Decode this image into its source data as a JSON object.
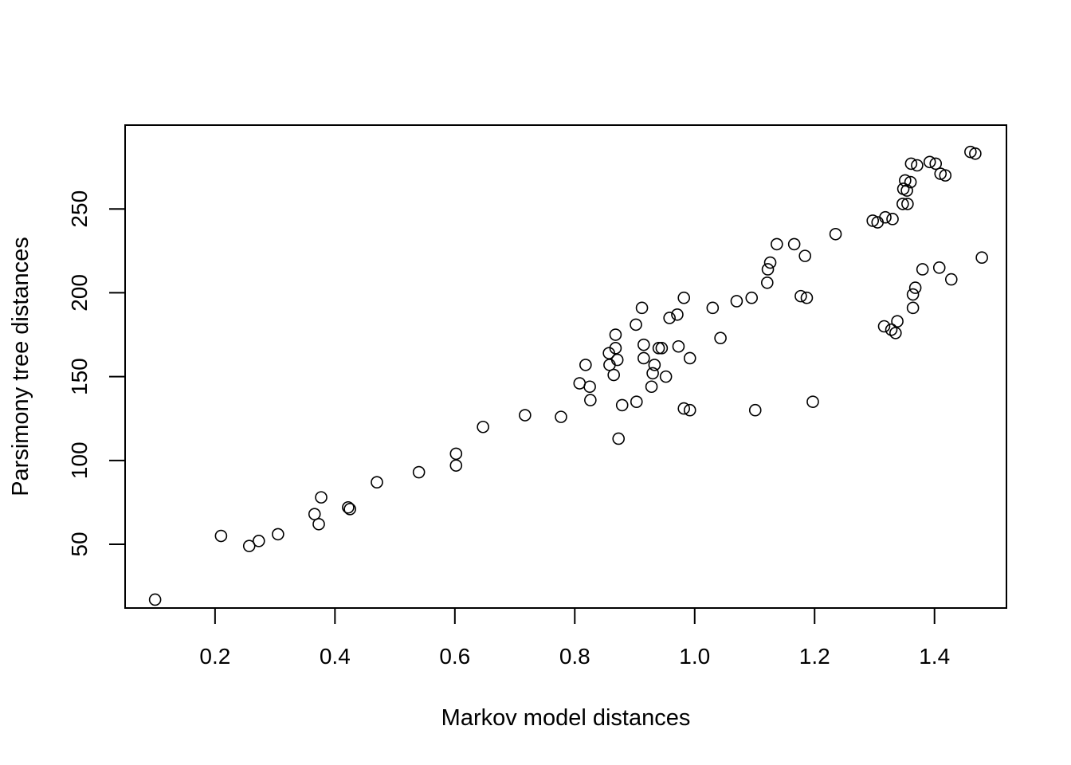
{
  "chart_data": {
    "type": "scatter",
    "title": "",
    "xlabel": "Markov model distances",
    "ylabel": "Parsimony tree distances",
    "xlim": [
      0.05,
      1.52
    ],
    "ylim": [
      12,
      300
    ],
    "xticks": [
      0.2,
      0.4,
      0.6,
      0.8,
      1.0,
      1.2,
      1.4
    ],
    "xtick_labels": [
      "0.2",
      "0.4",
      "0.6",
      "0.8",
      "1.0",
      "1.2",
      "1.4"
    ],
    "yticks": [
      50,
      100,
      150,
      200,
      250
    ],
    "ytick_labels": [
      "50",
      "100",
      "150",
      "200",
      "250"
    ],
    "grid": false,
    "legend": "none",
    "marker": "open-circle",
    "color": "#000000",
    "points": [
      [
        0.1,
        17
      ],
      [
        0.21,
        55
      ],
      [
        0.257,
        49
      ],
      [
        0.273,
        52
      ],
      [
        0.305,
        56
      ],
      [
        0.366,
        68
      ],
      [
        0.373,
        62
      ],
      [
        0.377,
        78
      ],
      [
        0.422,
        72
      ],
      [
        0.425,
        71
      ],
      [
        0.47,
        87
      ],
      [
        0.54,
        93
      ],
      [
        0.602,
        97
      ],
      [
        0.602,
        104
      ],
      [
        0.647,
        120
      ],
      [
        0.717,
        127
      ],
      [
        0.777,
        126
      ],
      [
        0.808,
        146
      ],
      [
        0.818,
        157
      ],
      [
        0.825,
        144
      ],
      [
        0.826,
        136
      ],
      [
        0.857,
        164
      ],
      [
        0.858,
        157
      ],
      [
        0.865,
        151
      ],
      [
        0.868,
        175
      ],
      [
        0.868,
        167
      ],
      [
        0.871,
        160
      ],
      [
        0.873,
        113
      ],
      [
        0.879,
        133
      ],
      [
        0.902,
        181
      ],
      [
        0.903,
        135
      ],
      [
        0.912,
        191
      ],
      [
        0.915,
        169
      ],
      [
        0.915,
        161
      ],
      [
        0.928,
        144
      ],
      [
        0.93,
        152
      ],
      [
        0.933,
        157
      ],
      [
        0.94,
        167
      ],
      [
        0.945,
        167
      ],
      [
        0.952,
        150
      ],
      [
        0.958,
        185
      ],
      [
        0.971,
        187
      ],
      [
        0.973,
        168
      ],
      [
        0.982,
        197
      ],
      [
        0.982,
        131
      ],
      [
        0.992,
        130
      ],
      [
        0.992,
        161
      ],
      [
        1.03,
        191
      ],
      [
        1.043,
        173
      ],
      [
        1.07,
        195
      ],
      [
        1.095,
        197
      ],
      [
        1.101,
        130
      ],
      [
        1.121,
        206
      ],
      [
        1.122,
        214
      ],
      [
        1.126,
        218
      ],
      [
        1.137,
        229
      ],
      [
        1.166,
        229
      ],
      [
        1.177,
        198
      ],
      [
        1.184,
        222
      ],
      [
        1.187,
        197
      ],
      [
        1.197,
        135
      ],
      [
        1.235,
        235
      ],
      [
        1.297,
        243
      ],
      [
        1.305,
        242
      ],
      [
        1.318,
        245
      ],
      [
        1.316,
        180
      ],
      [
        1.328,
        178
      ],
      [
        1.33,
        244
      ],
      [
        1.335,
        176
      ],
      [
        1.338,
        183
      ],
      [
        1.347,
        253
      ],
      [
        1.348,
        262
      ],
      [
        1.351,
        267
      ],
      [
        1.354,
        261
      ],
      [
        1.355,
        253
      ],
      [
        1.36,
        266
      ],
      [
        1.361,
        277
      ],
      [
        1.364,
        191
      ],
      [
        1.364,
        199
      ],
      [
        1.368,
        203
      ],
      [
        1.371,
        276
      ],
      [
        1.38,
        214
      ],
      [
        1.392,
        278
      ],
      [
        1.402,
        277
      ],
      [
        1.408,
        215
      ],
      [
        1.41,
        271
      ],
      [
        1.418,
        270
      ],
      [
        1.428,
        208
      ],
      [
        1.46,
        284
      ],
      [
        1.468,
        283
      ],
      [
        1.479,
        221
      ]
    ]
  }
}
